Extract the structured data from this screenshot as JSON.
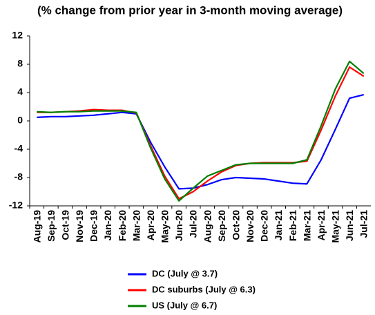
{
  "chart_data": {
    "type": "line",
    "title": "(% change from prior year in 3-month moving average)",
    "categories": [
      "Aug-19",
      "Sep-19",
      "Oct-19",
      "Nov-19",
      "Dec-19",
      "Jan-20",
      "Feb-20",
      "Mar-20",
      "Apr-20",
      "May-20",
      "Jun-20",
      "Jul-20",
      "Aug-20",
      "Sep-20",
      "Oct-20",
      "Nov-20",
      "Dec-20",
      "Jan-21",
      "Feb-21",
      "Mar-21",
      "Apr-21",
      "May-21",
      "Jun-21",
      "Jul-21"
    ],
    "series": [
      {
        "name": "DC (July @ 3.7)",
        "color": "#0000ff",
        "values": [
          0.5,
          0.6,
          0.6,
          0.7,
          0.8,
          1.0,
          1.2,
          1.0,
          -3.0,
          -6.5,
          -9.6,
          -9.5,
          -9.0,
          -8.3,
          -8.0,
          -8.1,
          -8.2,
          -8.5,
          -8.8,
          -8.9,
          -5.5,
          -1.2,
          3.2,
          3.7
        ]
      },
      {
        "name": "DC suburbs (July @ 6.3)",
        "color": "#ff0000",
        "values": [
          1.2,
          1.2,
          1.3,
          1.4,
          1.6,
          1.5,
          1.5,
          1.1,
          -3.5,
          -7.8,
          -11.0,
          -10.0,
          -8.5,
          -7.2,
          -6.3,
          -6.0,
          -5.9,
          -5.9,
          -5.9,
          -5.7,
          -1.3,
          3.5,
          7.6,
          6.3
        ]
      },
      {
        "name": "US (July @ 6.7)",
        "color": "#008000",
        "values": [
          1.3,
          1.2,
          1.3,
          1.3,
          1.4,
          1.4,
          1.4,
          1.2,
          -3.8,
          -8.2,
          -11.3,
          -9.5,
          -7.8,
          -7.0,
          -6.2,
          -6.0,
          -6.0,
          -6.0,
          -6.0,
          -5.5,
          -0.7,
          4.5,
          8.4,
          6.7
        ]
      }
    ],
    "ylim": [
      -12,
      12
    ],
    "yticks": [
      -12,
      -8,
      -4,
      0,
      4,
      8,
      12
    ],
    "grid": false
  }
}
